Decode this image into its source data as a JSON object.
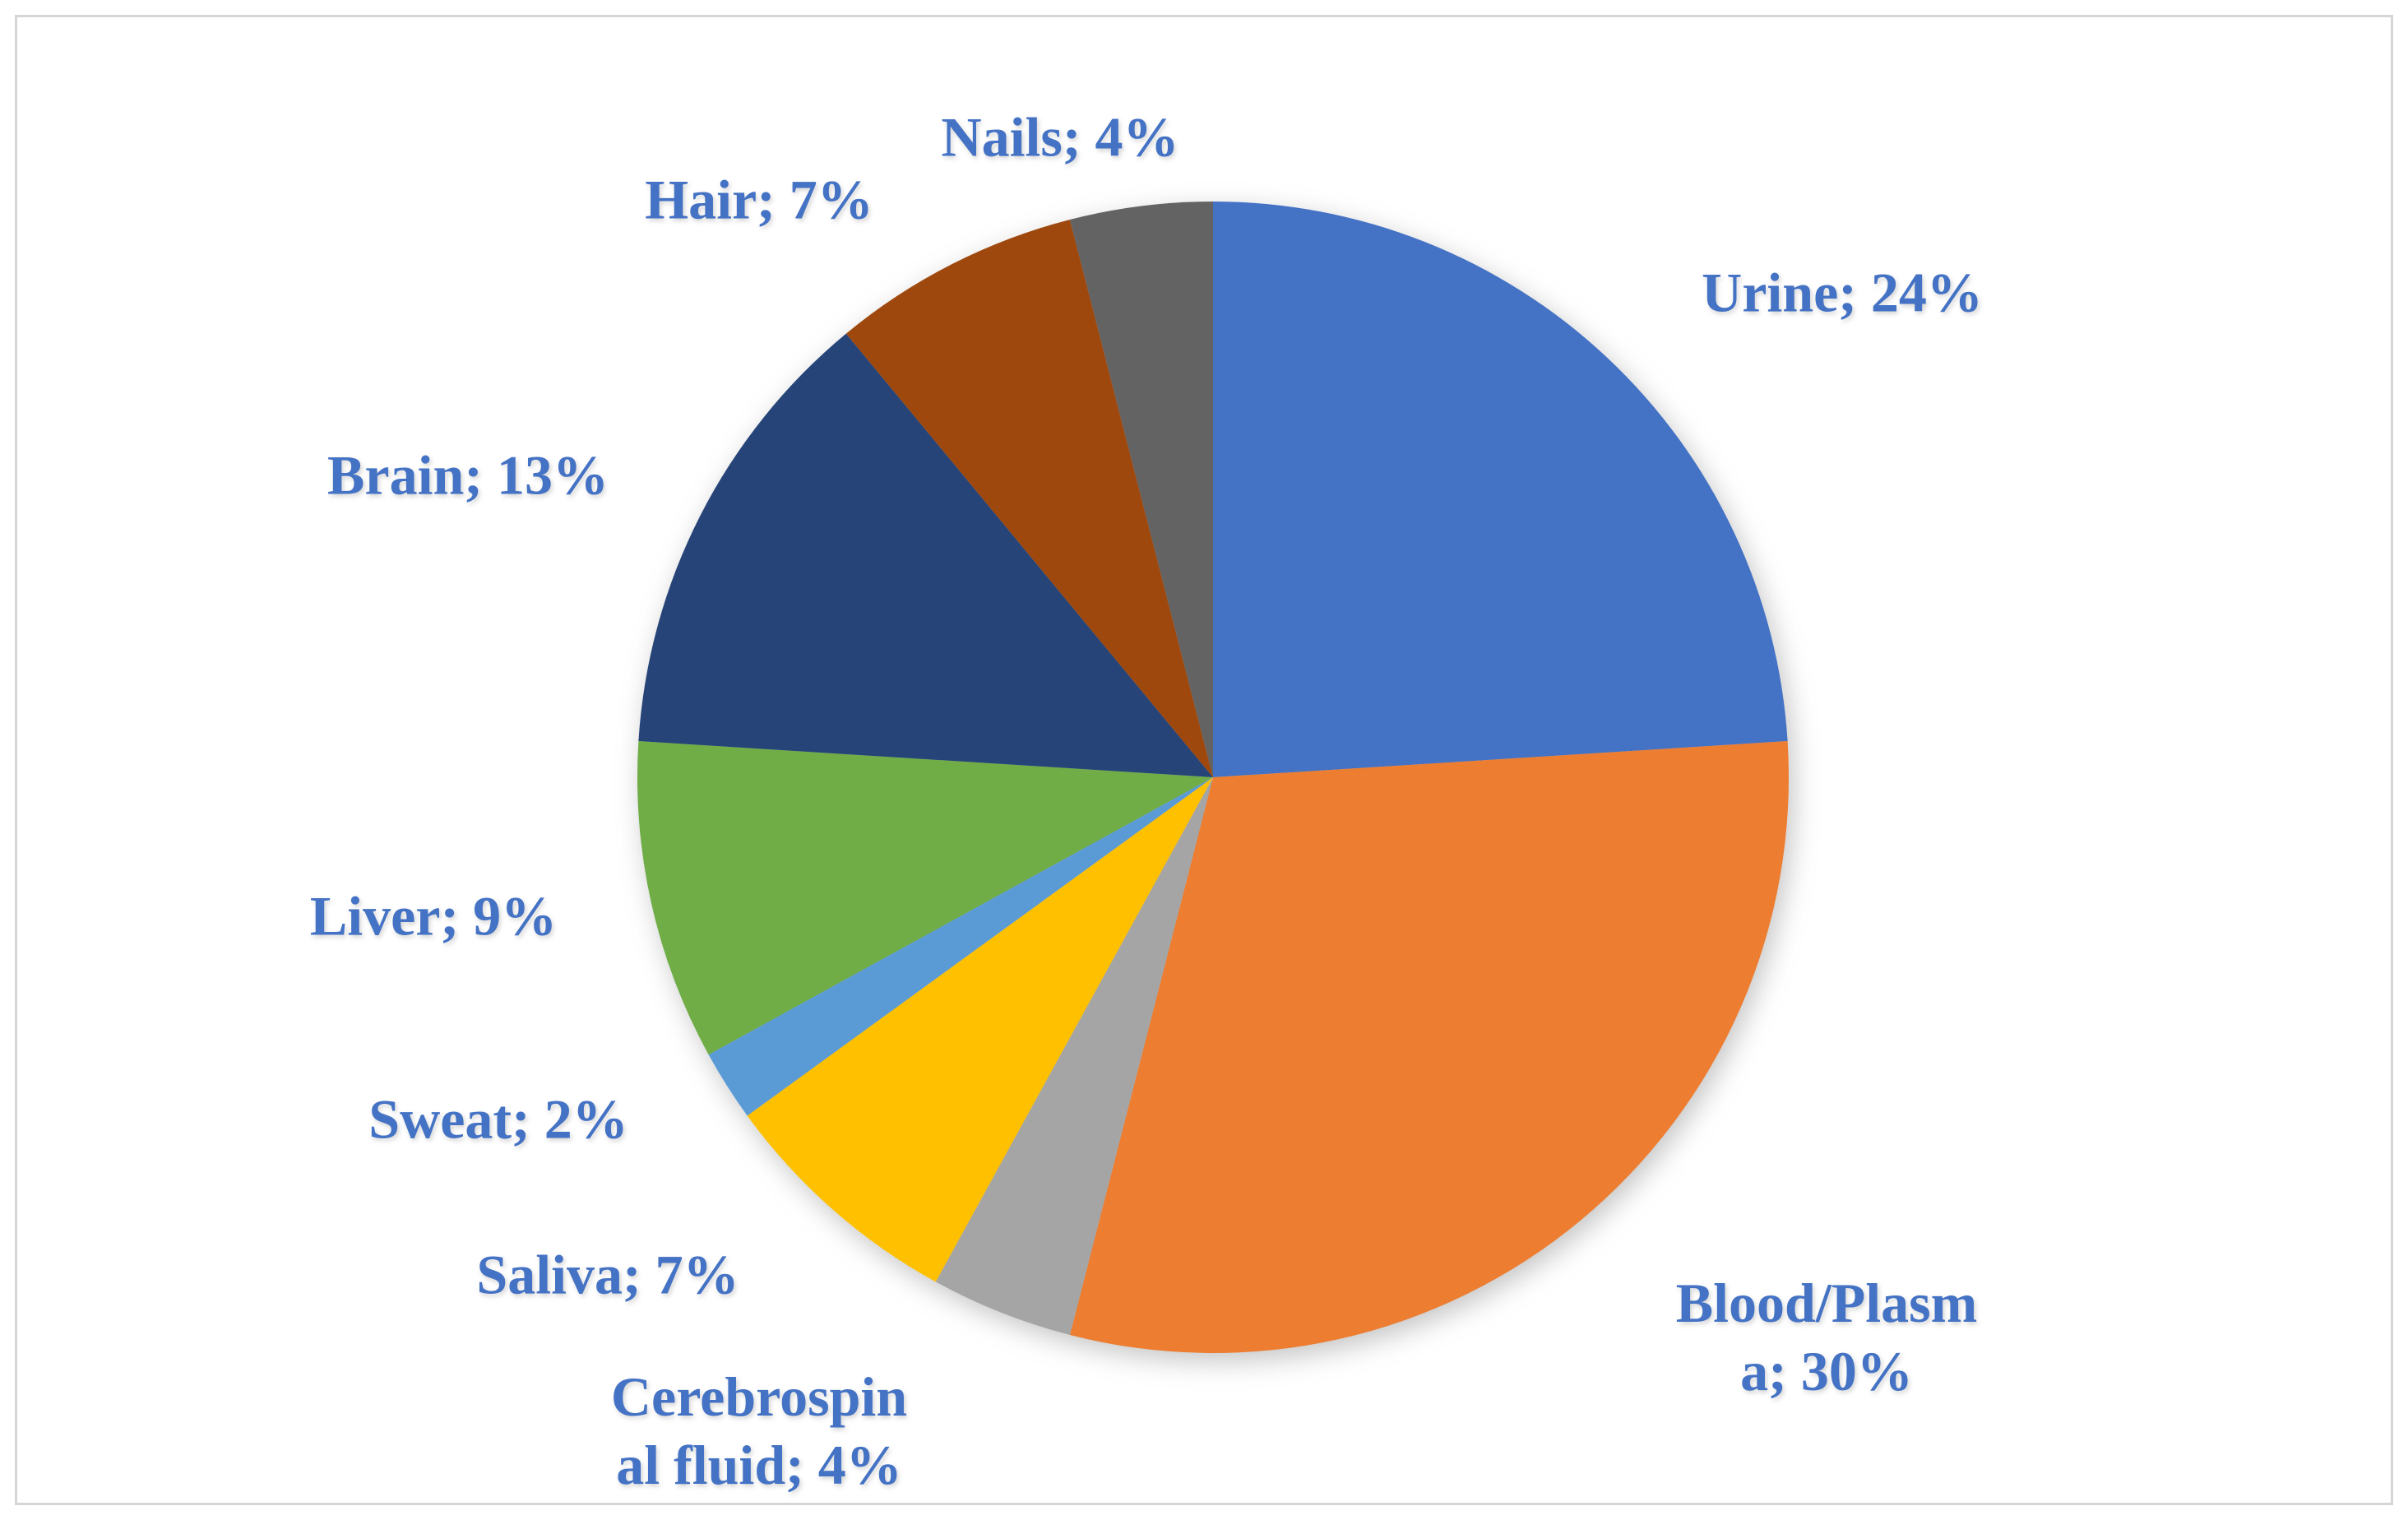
{
  "chart_data": {
    "type": "pie",
    "title": "",
    "start_angle_deg": 0,
    "direction": "clockwise",
    "legend_position": "none",
    "label_color": "#4472C4",
    "background_color": "#FFFFFF",
    "slices": [
      {
        "label": "Urine",
        "value": 24,
        "color": "#4472C4",
        "data_label": "Urine; 24%"
      },
      {
        "label": "Blood/Plasma",
        "value": 30,
        "color": "#ED7D31",
        "data_label": "Blood/Plasm\na; 30%"
      },
      {
        "label": "Cerebrospinal fluid",
        "value": 4,
        "color": "#A5A5A5",
        "data_label": "Cerebrospin\nal fluid; 4%"
      },
      {
        "label": "Saliva",
        "value": 7,
        "color": "#FFC000",
        "data_label": "Saliva; 7%"
      },
      {
        "label": "Sweat",
        "value": 2,
        "color": "#5B9BD5",
        "data_label": "Sweat; 2%"
      },
      {
        "label": "Liver",
        "value": 9,
        "color": "#70AD47",
        "data_label": "Liver; 9%"
      },
      {
        "label": "Brain",
        "value": 13,
        "color": "#264478",
        "data_label": "Brain; 13%"
      },
      {
        "label": "Hair",
        "value": 7,
        "color": "#9E480E",
        "data_label": "Hair; 7%"
      },
      {
        "label": "Nails",
        "value": 4,
        "color": "#636363",
        "data_label": "Nails; 4%"
      }
    ]
  }
}
